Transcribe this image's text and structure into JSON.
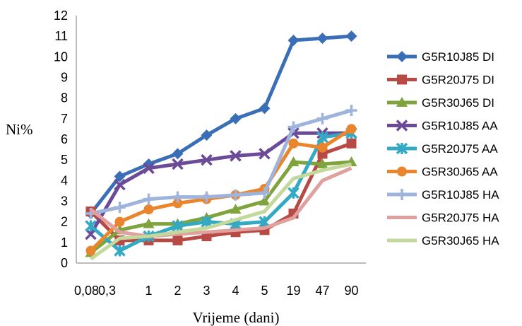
{
  "chart_data": {
    "type": "line",
    "title": "",
    "xlabel": "Vrijeme (dani)",
    "ylabel": "Ni%",
    "ylim": [
      0,
      12
    ],
    "yticks": [
      "0",
      "1",
      "2",
      "3",
      "4",
      "5",
      "6",
      "7",
      "8",
      "9",
      "10",
      "11",
      "12"
    ],
    "categories": [
      "0,08",
      "0,3",
      "1",
      "2",
      "3",
      "4",
      "5",
      "19",
      "47",
      "90"
    ],
    "grid": false,
    "legend_position": "right",
    "series": [
      {
        "name": "G5R10J85 DI",
        "color": "#3a6fb8",
        "marker": "diamond",
        "values": [
          2.4,
          4.2,
          4.8,
          5.3,
          6.2,
          7.0,
          7.5,
          10.8,
          10.9,
          11.0
        ]
      },
      {
        "name": "G5R20J75 DI",
        "color": "#b84a46",
        "marker": "square",
        "values": [
          2.5,
          1.1,
          1.1,
          1.1,
          1.3,
          1.5,
          1.6,
          2.4,
          5.3,
          5.8
        ]
      },
      {
        "name": "G5R30J65 DI",
        "color": "#7fa33d",
        "marker": "triangle",
        "values": [
          0.5,
          1.6,
          1.9,
          1.9,
          2.2,
          2.6,
          3.0,
          4.9,
          4.8,
          4.9
        ]
      },
      {
        "name": "G5R10J85 AA",
        "color": "#6b4a98",
        "marker": "x",
        "values": [
          1.4,
          3.8,
          4.6,
          4.8,
          5.0,
          5.2,
          5.3,
          6.3,
          6.3,
          6.3
        ]
      },
      {
        "name": "G5R20J75  AA",
        "color": "#34a9c4",
        "marker": "star",
        "values": [
          1.8,
          0.6,
          1.3,
          1.8,
          2.0,
          1.9,
          2.0,
          3.4,
          6.1,
          6.3
        ]
      },
      {
        "name": "G5R30J65  AA",
        "color": "#e8852d",
        "marker": "circle",
        "values": [
          0.6,
          2.0,
          2.6,
          2.9,
          3.1,
          3.3,
          3.6,
          5.8,
          5.6,
          6.5
        ]
      },
      {
        "name": "G5R10J85  HA",
        "color": "#9fb4dc",
        "marker": "plus",
        "values": [
          2.4,
          2.7,
          3.1,
          3.2,
          3.2,
          3.3,
          3.4,
          6.6,
          7.0,
          7.4
        ]
      },
      {
        "name": "G5R20J75 HA",
        "color": "#e0a09e",
        "marker": "none",
        "values": [
          2.6,
          1.5,
          1.3,
          1.4,
          1.5,
          1.6,
          1.7,
          2.2,
          4.0,
          4.6
        ]
      },
      {
        "name": "G5R30J65 HA",
        "color": "#c3d89b",
        "marker": "none",
        "values": [
          0.2,
          1.2,
          1.3,
          1.5,
          1.7,
          2.1,
          2.5,
          4.1,
          4.5,
          4.8
        ]
      }
    ]
  }
}
